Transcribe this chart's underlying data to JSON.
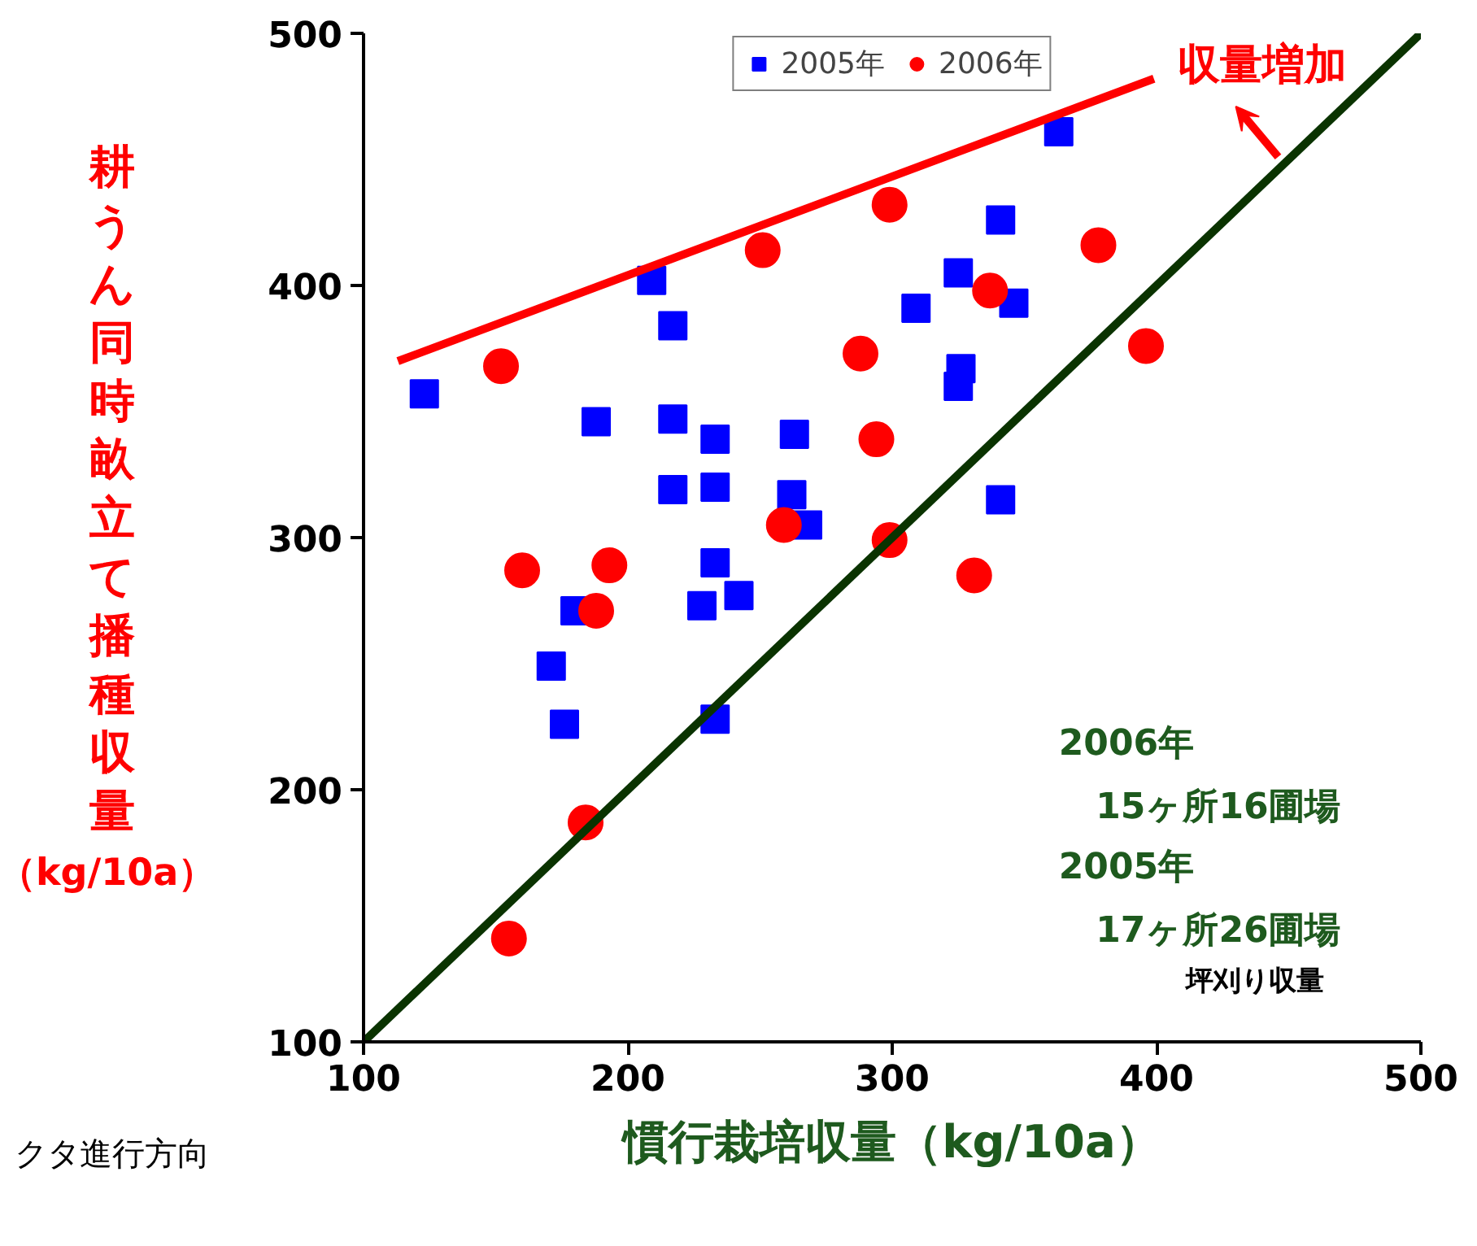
{
  "chart_data": {
    "type": "scatter",
    "xlabel": "慣行栽培収量（kg/10a）",
    "ylabel": "耕うん同時畝立て播種収量（kg/10a）",
    "xlim": [
      100,
      500
    ],
    "ylim": [
      100,
      500
    ],
    "xticks": [
      100,
      200,
      300,
      400,
      500
    ],
    "yticks": [
      100,
      200,
      300,
      400,
      500
    ],
    "grid": false,
    "legend": "top",
    "series": [
      {
        "name": "2005年",
        "color": "#0000ff",
        "marker": "square",
        "x": [
          123,
          209,
          217,
          188,
          217,
          233,
          263,
          217,
          233,
          262,
          268,
          233,
          180,
          228,
          242,
          171,
          176,
          233,
          363,
          341,
          325,
          309,
          346,
          326,
          325,
          341
        ],
        "values": [
          357,
          402,
          384,
          346,
          347,
          339,
          341,
          319,
          320,
          317,
          305,
          290,
          271,
          273,
          277,
          249,
          226,
          228,
          461,
          426,
          405,
          391,
          393,
          367,
          360,
          315
        ]
      },
      {
        "name": "2006年",
        "color": "#ff0000",
        "marker": "circle",
        "x": [
          152,
          251,
          299,
          378,
          288,
          337,
          294,
          259,
          299,
          331,
          396,
          160,
          193,
          188,
          184,
          155
        ],
        "values": [
          368,
          414,
          432,
          416,
          373,
          398,
          339,
          305,
          299,
          285,
          376,
          287,
          289,
          271,
          187,
          141
        ]
      },
      {
        "type": "line",
        "color": "#ff0000",
        "x": [
          113,
          399
        ],
        "values": [
          370,
          482
        ]
      },
      {
        "type": "line",
        "color": "#0a3300",
        "x": [
          100,
          500
        ],
        "values": [
          100,
          500
        ]
      }
    ],
    "annotations": [
      "収量増加",
      "2006年",
      "15ヶ所16圃場",
      "2005年",
      "17ヶ所26圃場",
      "坪刈り収量",
      "クタ進行方向"
    ]
  }
}
